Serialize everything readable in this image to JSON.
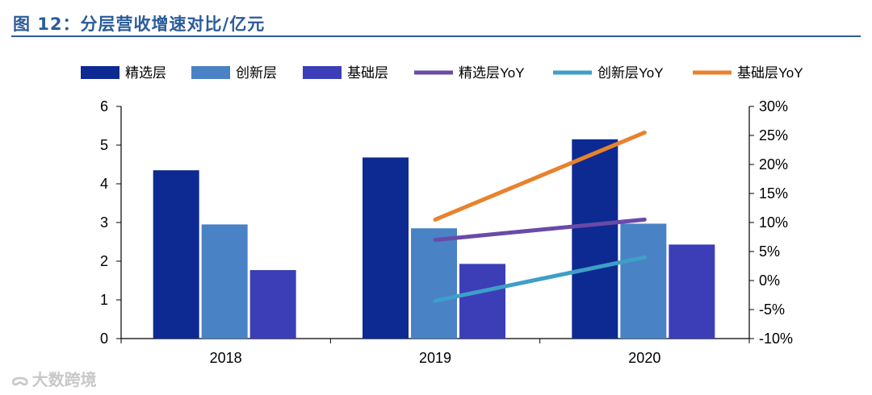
{
  "figure": {
    "title": "图 12：分层营收增速对比/亿元"
  },
  "watermark": {
    "text": "大数跨境",
    "icon": "logo-icon"
  },
  "chart_data": {
    "type": "bar",
    "title": "分层营收增速对比/亿元",
    "categories": [
      "2018",
      "2019",
      "2020"
    ],
    "series": [
      {
        "name": "精选层",
        "kind": "bar",
        "axis": "left",
        "color": "#0d2a92",
        "values": [
          4.35,
          4.68,
          5.15
        ]
      },
      {
        "name": "创新层",
        "kind": "bar",
        "axis": "left",
        "color": "#4a82c6",
        "values": [
          2.95,
          2.85,
          2.97
        ]
      },
      {
        "name": "基础层",
        "kind": "bar",
        "axis": "left",
        "color": "#3c3eb8",
        "values": [
          1.77,
          1.93,
          2.43
        ]
      },
      {
        "name": "精选层YoY",
        "kind": "line",
        "axis": "right",
        "color": "#6a4aa8",
        "values": [
          null,
          0.07,
          0.105
        ]
      },
      {
        "name": "创新层YoY",
        "kind": "line",
        "axis": "right",
        "color": "#3e9fc7",
        "values": [
          null,
          -0.035,
          0.04
        ]
      },
      {
        "name": "基础层YoY",
        "kind": "line",
        "axis": "right",
        "color": "#e8822e",
        "values": [
          null,
          0.105,
          0.255
        ]
      }
    ],
    "y_left": {
      "min": 0,
      "max": 6,
      "ticks": [
        "0",
        "1",
        "2",
        "3",
        "4",
        "5",
        "6"
      ]
    },
    "y_right": {
      "min": -0.1,
      "max": 0.3,
      "ticks": [
        "-10%",
        "-5%",
        "0%",
        "5%",
        "10%",
        "15%",
        "20%",
        "25%",
        "30%"
      ]
    },
    "xlabel": "",
    "ylabel": "",
    "legend_position": "top"
  }
}
